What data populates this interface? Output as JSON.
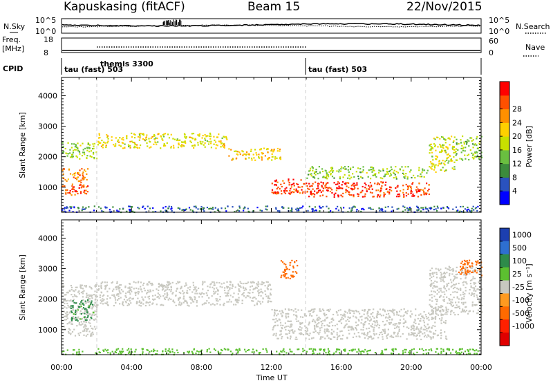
{
  "header": {
    "station": "Kapuskasing (fitACF)",
    "beam": "Beam 15",
    "date": "22/Nov/2015"
  },
  "strip": {
    "nsky_label": "N.Sky",
    "nsky_ticks": [
      "10^5",
      "10^0"
    ],
    "nsearch_label": "N.Search",
    "nsearch_ticks": [
      "10^5",
      "10^0"
    ],
    "freq_label_1": "Freq.",
    "freq_label_2": "[MHz]",
    "freq_ticks": [
      "18",
      "8"
    ],
    "nave_label": "Nave",
    "nave_ticks": [
      "60",
      "0"
    ],
    "cpid_label": "CPID",
    "programs": [
      {
        "name": "tau (fast) 503",
        "start_hour": 0
      },
      {
        "name": "themis 3300",
        "start_hour": 2
      },
      {
        "name": "tau (fast) 503",
        "start_hour": 14
      }
    ]
  },
  "axes": {
    "xlabel": "Time UT",
    "xticks": [
      "00:00",
      "04:00",
      "08:00",
      "12:00",
      "16:00",
      "20:00",
      "00:00"
    ],
    "xlim_hours": [
      0,
      24
    ],
    "ylabel": "Slant Range [km]",
    "yticks": [
      "1000",
      "2000",
      "3000",
      "4000"
    ],
    "ylim_km": [
      180,
      4600
    ]
  },
  "colorbars": {
    "power": {
      "label": "Power [dB]",
      "ticks": [
        "4",
        "8",
        "12",
        "16",
        "20",
        "24",
        "28"
      ],
      "colors": [
        "#0000ff",
        "#2a52be",
        "#3c8c3c",
        "#6abf40",
        "#c8e000",
        "#ffd000",
        "#ff9000",
        "#ff5000",
        "#ff0000"
      ]
    },
    "velocity": {
      "label": "Velocity [m s⁻¹]",
      "ticks": [
        "1000",
        "500",
        "100",
        "25",
        "-25",
        "-100",
        "-500",
        "-1000"
      ],
      "colors": [
        "#1c3fb0",
        "#2e6fd0",
        "#2e8b4a",
        "#5cc030",
        "#c8c8c0",
        "#ff9a20",
        "#ff6a00",
        "#ff2000",
        "#e00000"
      ]
    }
  },
  "chart_data": [
    {
      "type": "heatmap",
      "title": "Power [dB]",
      "xlabel": "Time UT",
      "ylabel": "Slant Range [km]",
      "xlim": [
        0,
        24
      ],
      "ylim": [
        180,
        4600
      ],
      "clim": [
        0,
        32
      ],
      "echo_regions": [
        {
          "t0": 0.0,
          "t1": 1.5,
          "r0": 760,
          "r1": 1160,
          "power": 27
        },
        {
          "t0": 0.0,
          "t1": 1.5,
          "r0": 1180,
          "r1": 1640,
          "power": 24
        },
        {
          "t0": 0.0,
          "t1": 2.0,
          "r0": 1950,
          "r1": 2480,
          "power": 14
        },
        {
          "t0": 2.0,
          "t1": 9.5,
          "r0": 2300,
          "r1": 2800,
          "power": 18
        },
        {
          "t0": 9.5,
          "t1": 12.5,
          "r0": 1900,
          "r1": 2300,
          "power": 20
        },
        {
          "t0": 12.0,
          "t1": 14.0,
          "r0": 800,
          "r1": 1300,
          "power": 28
        },
        {
          "t0": 14.0,
          "t1": 21.0,
          "r0": 700,
          "r1": 1200,
          "power": 28
        },
        {
          "t0": 14.0,
          "t1": 21.0,
          "r0": 1300,
          "r1": 1700,
          "power": 14
        },
        {
          "t0": 21.0,
          "t1": 22.5,
          "r0": 1500,
          "r1": 2700,
          "power": 17
        },
        {
          "t0": 22.5,
          "t1": 24.0,
          "r0": 1900,
          "r1": 2700,
          "power": 14
        },
        {
          "t0": 0.0,
          "t1": 24.0,
          "r0": 200,
          "r1": 400,
          "power": 6
        }
      ]
    },
    {
      "type": "heatmap",
      "title": "Velocity [m s⁻¹]",
      "xlabel": "Time UT",
      "ylabel": "Slant Range [km]",
      "xlim": [
        0,
        24
      ],
      "ylim": [
        180,
        4600
      ],
      "clim": [
        -1000,
        1000
      ],
      "echo_regions": [
        {
          "t0": 0.0,
          "t1": 2.0,
          "r0": 800,
          "r1": 2500,
          "velocity": 0
        },
        {
          "t0": 0.5,
          "t1": 1.8,
          "r0": 1300,
          "r1": 2000,
          "velocity": 150
        },
        {
          "t0": 2.0,
          "t1": 12.0,
          "r0": 1800,
          "r1": 2600,
          "velocity": 0
        },
        {
          "t0": 12.0,
          "t1": 22.0,
          "r0": 700,
          "r1": 1700,
          "velocity": 0
        },
        {
          "t0": 12.5,
          "t1": 13.5,
          "r0": 2700,
          "r1": 3300,
          "velocity": -300
        },
        {
          "t0": 21.0,
          "t1": 24.0,
          "r0": 1500,
          "r1": 3100,
          "velocity": 0
        },
        {
          "t0": 22.5,
          "t1": 24.0,
          "r0": 2800,
          "r1": 3300,
          "velocity": -200
        },
        {
          "t0": 0.0,
          "t1": 24.0,
          "r0": 200,
          "r1": 400,
          "velocity": 50
        }
      ]
    }
  ]
}
